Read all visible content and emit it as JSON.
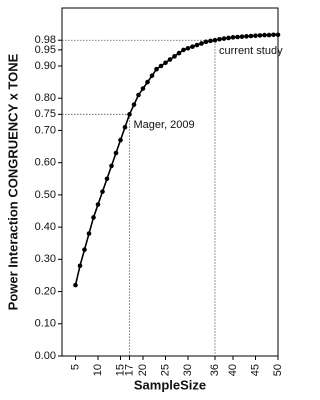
{
  "chart_data": {
    "type": "line",
    "y_label": "Power Interaction CONGRUENCY x TONE",
    "x_label": "SampleSize",
    "x": [
      5,
      6,
      7,
      8,
      9,
      10,
      11,
      12,
      13,
      14,
      15,
      16,
      17,
      18,
      19,
      20,
      21,
      22,
      23,
      24,
      25,
      26,
      27,
      28,
      29,
      30,
      31,
      32,
      33,
      34,
      35,
      36,
      37,
      38,
      39,
      40,
      41,
      42,
      43,
      44,
      45,
      46,
      47,
      48,
      49,
      50
    ],
    "series": [
      {
        "color": "#000000",
        "values": [
          0.22,
          0.28,
          0.33,
          0.38,
          0.43,
          0.47,
          0.51,
          0.55,
          0.59,
          0.63,
          0.67,
          0.71,
          0.75,
          0.78,
          0.81,
          0.83,
          0.85,
          0.87,
          0.89,
          0.9,
          0.91,
          0.92,
          0.93,
          0.94,
          0.95,
          0.955,
          0.96,
          0.965,
          0.97,
          0.975,
          0.978,
          0.98,
          0.983,
          0.985,
          0.987,
          0.989,
          0.99,
          0.991,
          0.992,
          0.993,
          0.994,
          0.995,
          0.996,
          0.996,
          0.997,
          0.997
        ]
      }
    ],
    "xlim": [
      2,
      50
    ],
    "ylim": [
      0,
      1.08
    ],
    "xticks": [
      5,
      10,
      15,
      17,
      20,
      25,
      30,
      36,
      40,
      45,
      50
    ],
    "yticks": [
      {
        "value": 0,
        "label": "0.00"
      },
      {
        "value": 0.1,
        "label": "0.10"
      },
      {
        "value": 0.2,
        "label": "0.20"
      },
      {
        "value": 0.3,
        "label": "0.30"
      },
      {
        "value": 0.4,
        "label": "0.40"
      },
      {
        "value": 0.5,
        "label": "0.50"
      },
      {
        "value": 0.6,
        "label": "0.60"
      },
      {
        "value": 0.7,
        "label": "0.70"
      },
      {
        "value": 0.75,
        "label": "0.75"
      },
      {
        "value": 0.8,
        "label": "0.80"
      },
      {
        "value": 0.9,
        "label": "0.90"
      },
      {
        "value": 0.95,
        "label": "0.95"
      },
      {
        "value": 0.98,
        "label": "0.98"
      }
    ],
    "reference_points": [
      {
        "x": 17,
        "y": 0.75,
        "label": "Mager, 2009"
      },
      {
        "x": 36,
        "y": 0.98,
        "label": "current study"
      }
    ]
  }
}
